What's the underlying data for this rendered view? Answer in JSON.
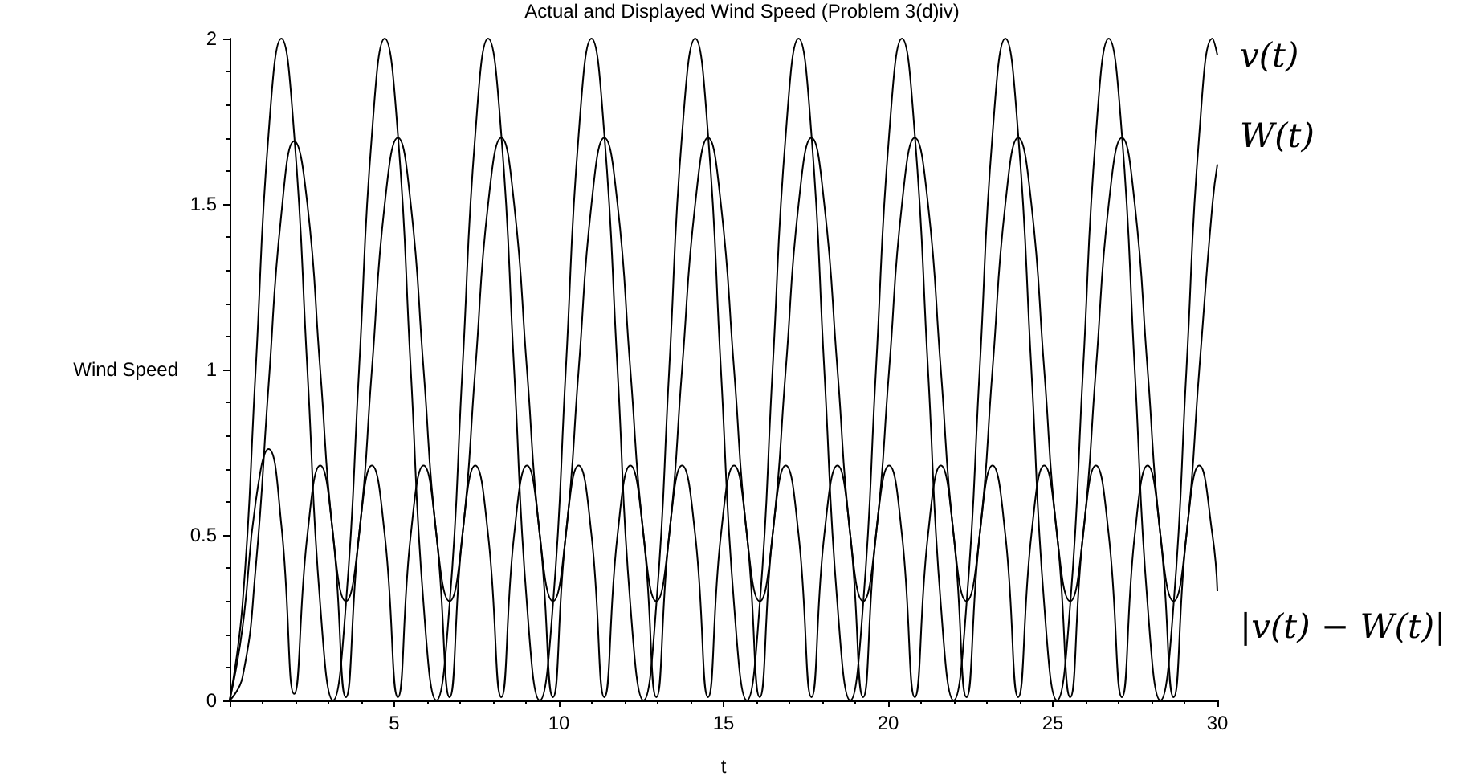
{
  "chart_data": {
    "type": "line",
    "title": "Actual and Displayed Wind Speed (Problem 3(d)iv)",
    "xlabel": "t",
    "ylabel": "Wind Speed",
    "x": [
      0,
      0.39,
      0.79,
      1.18,
      1.57,
      1.96,
      2.36,
      2.75,
      3.14,
      3.53,
      3.93,
      4.32,
      4.71,
      5.11,
      5.5,
      5.89,
      6.28,
      6.68,
      7.07,
      7.46,
      7.85,
      8.25,
      8.64,
      9.03,
      9.42,
      9.82,
      10.21,
      10.6,
      10.99,
      11.38,
      11.78,
      12.17,
      12.57,
      12.96,
      13.35,
      13.74,
      14.14,
      14.53,
      14.92,
      15.32,
      15.71,
      16.1,
      16.49,
      16.89,
      17.28,
      17.67,
      18.06,
      18.46,
      18.85,
      19.24,
      19.63,
      20.03,
      20.42,
      20.81,
      21.21,
      21.6,
      21.99,
      22.38,
      22.78,
      23.17,
      23.56,
      23.95,
      24.35,
      24.74,
      25.13,
      25.53,
      25.92,
      26.31,
      26.7,
      27.1,
      27.49,
      27.88,
      28.27,
      28.67,
      29.06,
      29.45,
      29.85,
      30
    ],
    "series": [
      {
        "name": "v(t)",
        "color": "#000000",
        "values": [
          0,
          0.29,
          1,
          1.71,
          2,
          1.71,
          1,
          0.29,
          0,
          0.29,
          1,
          1.71,
          2,
          1.71,
          1,
          0.29,
          0,
          0.29,
          1,
          1.71,
          2,
          1.71,
          1,
          0.29,
          0,
          0.29,
          1,
          1.71,
          2,
          1.71,
          1,
          0.29,
          0,
          0.29,
          1,
          1.71,
          2,
          1.71,
          1,
          0.29,
          0,
          0.29,
          1,
          1.71,
          2,
          1.71,
          1,
          0.29,
          0,
          0.29,
          1,
          1.71,
          2,
          1.71,
          1,
          0.29,
          0,
          0.29,
          1,
          1.71,
          2,
          1.71,
          1,
          0.29,
          0,
          0.29,
          1,
          1.71,
          2,
          1.71,
          1,
          0.29,
          0,
          0.29,
          1,
          1.71,
          2,
          1.95
        ]
      },
      {
        "name": "W(t)",
        "color": "#000000",
        "values": [
          0,
          0.07,
          0.4,
          0.95,
          1.47,
          1.69,
          1.5,
          1,
          0.5,
          0.3,
          0.5,
          1,
          1.5,
          1.7,
          1.5,
          1,
          0.5,
          0.3,
          0.5,
          1,
          1.5,
          1.7,
          1.5,
          1,
          0.5,
          0.3,
          0.5,
          1,
          1.5,
          1.7,
          1.5,
          1,
          0.5,
          0.3,
          0.5,
          1,
          1.5,
          1.7,
          1.5,
          1,
          0.5,
          0.3,
          0.5,
          1,
          1.5,
          1.7,
          1.5,
          1,
          0.5,
          0.3,
          0.5,
          1,
          1.5,
          1.7,
          1.5,
          1,
          0.5,
          0.3,
          0.5,
          1,
          1.5,
          1.7,
          1.5,
          1,
          0.5,
          0.3,
          0.5,
          1,
          1.5,
          1.7,
          1.5,
          1,
          0.5,
          0.3,
          0.5,
          1,
          1.5,
          1.62
        ]
      },
      {
        "name": "|v(t) − W(t)|",
        "color": "#000000",
        "values": [
          0,
          0.22,
          0.6,
          0.76,
          0.53,
          0.02,
          0.5,
          0.71,
          0.5,
          0.01,
          0.5,
          0.71,
          0.5,
          0.01,
          0.5,
          0.71,
          0.5,
          0.01,
          0.5,
          0.71,
          0.5,
          0.01,
          0.5,
          0.71,
          0.5,
          0.01,
          0.5,
          0.71,
          0.5,
          0.01,
          0.5,
          0.71,
          0.5,
          0.01,
          0.5,
          0.71,
          0.5,
          0.01,
          0.5,
          0.71,
          0.5,
          0.01,
          0.5,
          0.71,
          0.5,
          0.01,
          0.5,
          0.71,
          0.5,
          0.01,
          0.5,
          0.71,
          0.5,
          0.01,
          0.5,
          0.71,
          0.5,
          0.01,
          0.5,
          0.71,
          0.5,
          0.01,
          0.5,
          0.71,
          0.5,
          0.01,
          0.5,
          0.71,
          0.5,
          0.01,
          0.5,
          0.71,
          0.5,
          0.01,
          0.5,
          0.71,
          0.5,
          0.33
        ]
      }
    ],
    "xlim": [
      0,
      30
    ],
    "xticks": [
      {
        "value": 0,
        "label": null
      },
      5,
      10,
      15,
      20,
      25,
      30
    ],
    "ylim": [
      0,
      2
    ],
    "yticks": [
      0,
      0.5,
      1,
      1.5,
      2
    ],
    "marker": "none",
    "legend": false
  }
}
